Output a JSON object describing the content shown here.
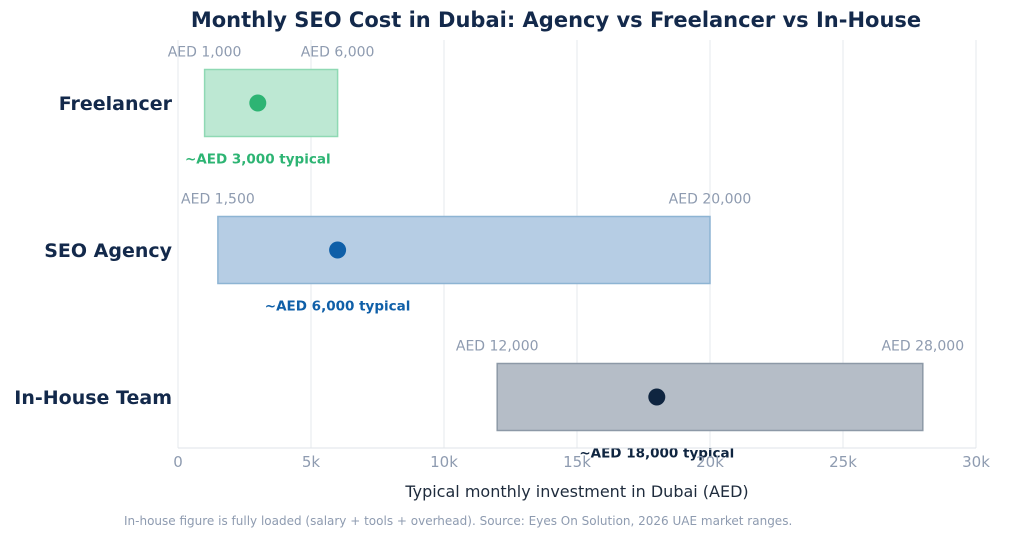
{
  "chart_data": {
    "type": "bar",
    "title": "Monthly SEO Cost in Dubai: Agency vs Freelancer vs In-House",
    "xlabel": "Typical monthly investment in Dubai (AED)",
    "ylabel": "",
    "xlim": [
      0,
      30000
    ],
    "x_ticks": [
      0,
      5000,
      10000,
      15000,
      20000,
      25000,
      30000
    ],
    "x_tick_labels": [
      "0",
      "5k",
      "10k",
      "15k",
      "20k",
      "25k",
      "30k"
    ],
    "grid": true,
    "categories": [
      "Freelancer",
      "SEO Agency",
      "In-House Team"
    ],
    "ranges": [
      {
        "category": "Freelancer",
        "min": 1000,
        "max": 6000,
        "typical": 3000,
        "min_label": "AED 1,000",
        "max_label": "AED 6,000",
        "typical_label": "~AED 3,000 typical",
        "fill": "#bde8d3",
        "stroke": "#8fd9b4",
        "dot": "#2db473"
      },
      {
        "category": "SEO Agency",
        "min": 1500,
        "max": 20000,
        "typical": 6000,
        "min_label": "AED 1,500",
        "max_label": "AED 20,000",
        "typical_label": "~AED 6,000 typical",
        "fill": "#b6cde4",
        "stroke": "#8db4d3",
        "dot": "#0f5fa8"
      },
      {
        "category": "In-House Team",
        "min": 12000,
        "max": 28000,
        "typical": 18000,
        "min_label": "AED 12,000",
        "max_label": "AED 28,000",
        "typical_label": "~AED 18,000 typical",
        "fill": "#b5bdc7",
        "stroke": "#8d99a7",
        "dot": "#0f2540"
      }
    ],
    "footnote": "In-house figure is fully loaded (salary + tools + overhead).  Source: Eyes On Solution, 2026 UAE market ranges."
  },
  "colors": {
    "title": "#13294b",
    "tick": "#8e9bb0",
    "grid": "#e6e9ee"
  }
}
